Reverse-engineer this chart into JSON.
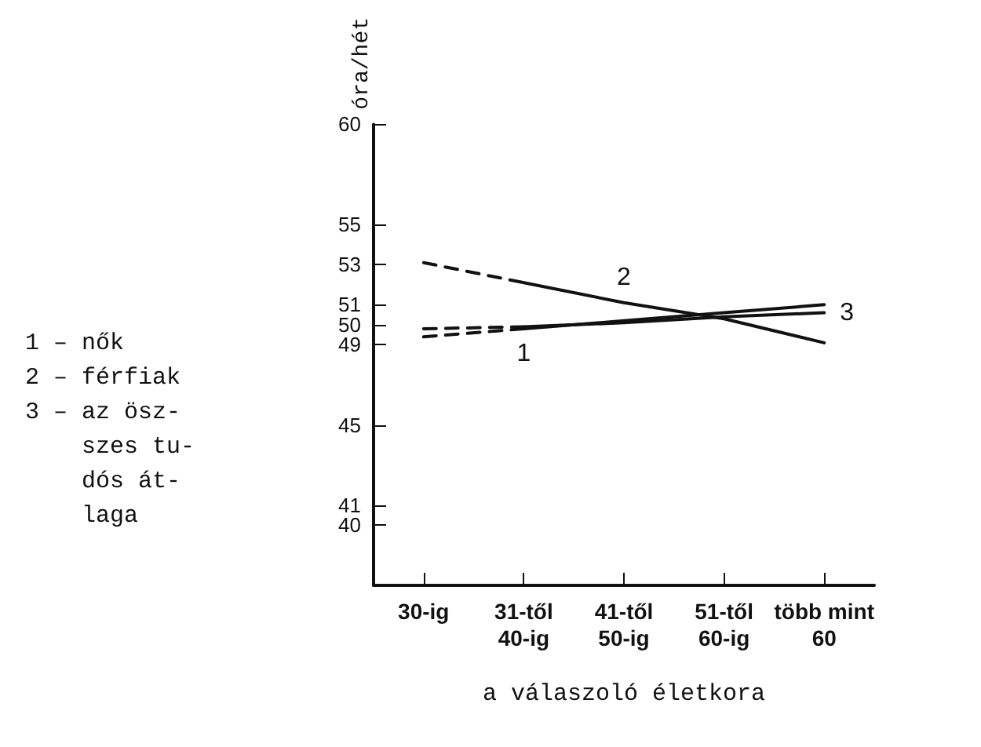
{
  "chart_data": {
    "type": "line",
    "xlabel": "a válaszoló életkora",
    "ylabel": "óra/hét",
    "categories": [
      "30-ig",
      "31-től\n40-ig",
      "41-től\n50-ig",
      "51-től\n60-ig",
      "több mint\n60"
    ],
    "series": [
      {
        "color": "#111111",
        "line_style": "dashed",
        "values": [
          49.4,
          49.8,
          null,
          null,
          null
        ]
      },
      {
        "name": "1",
        "color": "#111111",
        "line_style": "solid",
        "values": [
          null,
          49.8,
          50.2,
          50.6,
          51.0
        ]
      },
      {
        "color": "#111111",
        "line_style": "dashed",
        "values": [
          53.1,
          52.1,
          null,
          null,
          null
        ]
      },
      {
        "name": "2",
        "color": "#111111",
        "line_style": "solid",
        "values": [
          null,
          52.1,
          51.1,
          50.3,
          49.1
        ]
      },
      {
        "color": "#111111",
        "line_style": "dashed",
        "values": [
          49.8,
          49.9,
          null,
          null,
          null
        ]
      },
      {
        "name": "3",
        "color": "#111111",
        "line_style": "solid",
        "values": [
          null,
          49.9,
          50.1,
          50.4,
          50.6
        ]
      }
    ],
    "ylim": [
      37,
      60
    ],
    "yticks": [
      40,
      41,
      45,
      49,
      50,
      51,
      53,
      55,
      60
    ],
    "annotations": [
      "1 – nők",
      "2 – férfiak",
      "3 – az ösz-\n    szes tu-\n    dós át-\n    laga"
    ],
    "grid": false,
    "legend": false,
    "marker": "none"
  }
}
